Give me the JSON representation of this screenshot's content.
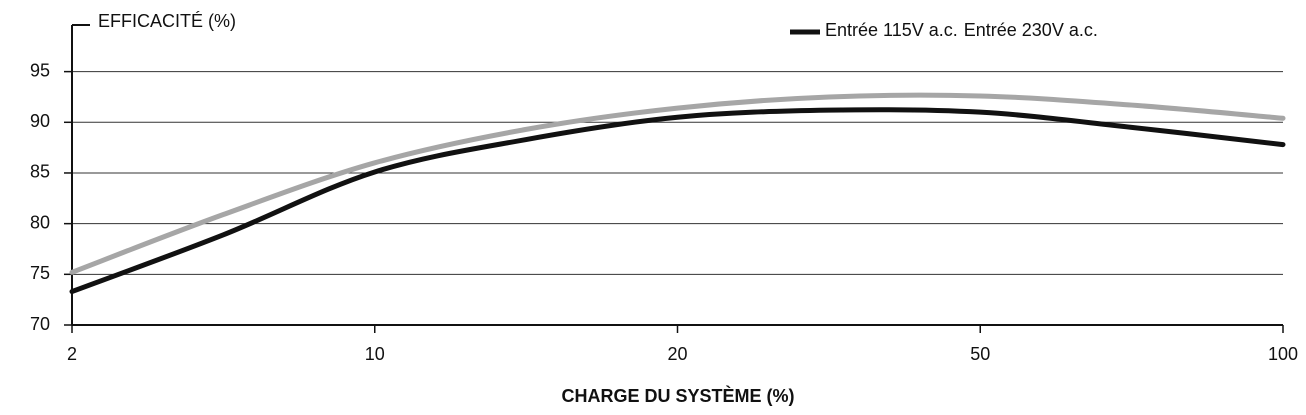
{
  "chart_data": {
    "type": "line",
    "y_label": "EFFICACITÉ (%)",
    "x_label": "CHARGE DU SYSTÈME (%)",
    "categories": [
      "2",
      null,
      "10",
      null,
      "20",
      null,
      "50",
      null,
      "100"
    ],
    "series": [
      {
        "name": "Entrée 115V a.c.",
        "color": "#111111",
        "values": [
          73.3,
          78.9,
          85.1,
          88.3,
          90.5,
          91.2,
          91.0,
          89.5,
          87.8
        ]
      },
      {
        "name": "Entrée 230V a.c.",
        "color": "#a6a6a6",
        "values": [
          75.2,
          80.9,
          86.0,
          89.3,
          91.4,
          92.5,
          92.6,
          91.7,
          90.4
        ]
      }
    ],
    "ylim": [
      70,
      99.6
    ],
    "yticks": [
      70,
      75,
      80,
      85,
      90,
      95
    ],
    "grid": true
  }
}
